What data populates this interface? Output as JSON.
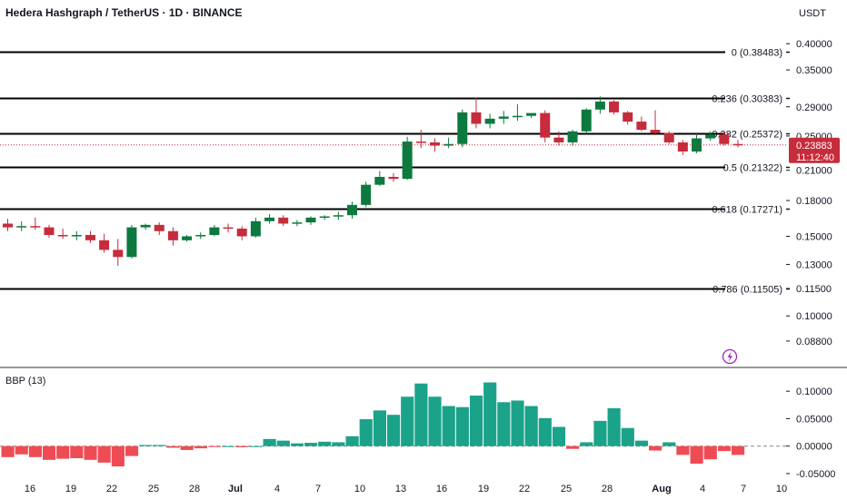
{
  "header": {
    "title": "Hedera Hashgraph / TetherUS · 1D · BINANCE",
    "currency": "USDT"
  },
  "price_badge": {
    "price": "0.23883",
    "countdown": "11:12:40",
    "color": "#c62c3c"
  },
  "indicator": {
    "title": "BBP (13)"
  },
  "icons": {
    "lightning": "lightning-icon"
  },
  "colors": {
    "up": "#0c7a3e",
    "down": "#c62c3c",
    "bbp_pos": "#1ba38a",
    "bbp_neg": "#ef4b55",
    "fib_line": "#000000"
  },
  "chart_data": [
    {
      "type": "candlestick",
      "title": "Hedera Hashgraph / TetherUS · 1D · BINANCE",
      "y_axis": {
        "scale": "log",
        "ticks": [
          "0.40000",
          "0.35000",
          "0.29000",
          "0.25000",
          "0.21000",
          "0.18000",
          "0.15000",
          "0.13000",
          "0.11500",
          "0.10000",
          "0.08800"
        ],
        "ylim": [
          0.078,
          0.435
        ]
      },
      "x_axis": {
        "ticks": [
          "16",
          "19",
          "22",
          "25",
          "28",
          "Jul",
          "4",
          "7",
          "10",
          "13",
          "16",
          "19",
          "22",
          "25",
          "28",
          "Aug",
          "4",
          "7",
          "10"
        ]
      },
      "fib_levels": [
        {
          "label": "0 (0.38483)",
          "value": 0.38483
        },
        {
          "label": "0.236 (0.30383)",
          "value": 0.30383
        },
        {
          "label": "0.382 (0.25372)",
          "value": 0.25372
        },
        {
          "label": "0.5 (0.21322)",
          "value": 0.21322
        },
        {
          "label": "0.618 (0.17271)",
          "value": 0.17271
        },
        {
          "label": "0.786 (0.11505)",
          "value": 0.11505
        }
      ],
      "current_price": 0.23883,
      "candles": [
        {
          "o": 0.16,
          "h": 0.164,
          "l": 0.154,
          "c": 0.157
        },
        {
          "o": 0.157,
          "h": 0.162,
          "l": 0.154,
          "c": 0.158
        },
        {
          "o": 0.158,
          "h": 0.165,
          "l": 0.155,
          "c": 0.157
        },
        {
          "o": 0.157,
          "h": 0.159,
          "l": 0.149,
          "c": 0.151
        },
        {
          "o": 0.151,
          "h": 0.156,
          "l": 0.148,
          "c": 0.15
        },
        {
          "o": 0.15,
          "h": 0.154,
          "l": 0.147,
          "c": 0.151
        },
        {
          "o": 0.151,
          "h": 0.154,
          "l": 0.145,
          "c": 0.147
        },
        {
          "o": 0.147,
          "h": 0.152,
          "l": 0.138,
          "c": 0.14
        },
        {
          "o": 0.14,
          "h": 0.148,
          "l": 0.129,
          "c": 0.135
        },
        {
          "o": 0.135,
          "h": 0.159,
          "l": 0.134,
          "c": 0.157
        },
        {
          "o": 0.157,
          "h": 0.16,
          "l": 0.155,
          "c": 0.159
        },
        {
          "o": 0.159,
          "h": 0.161,
          "l": 0.151,
          "c": 0.154
        },
        {
          "o": 0.154,
          "h": 0.157,
          "l": 0.143,
          "c": 0.147
        },
        {
          "o": 0.147,
          "h": 0.151,
          "l": 0.146,
          "c": 0.15
        },
        {
          "o": 0.15,
          "h": 0.153,
          "l": 0.148,
          "c": 0.151
        },
        {
          "o": 0.151,
          "h": 0.159,
          "l": 0.15,
          "c": 0.157
        },
        {
          "o": 0.157,
          "h": 0.16,
          "l": 0.153,
          "c": 0.156
        },
        {
          "o": 0.156,
          "h": 0.158,
          "l": 0.147,
          "c": 0.15
        },
        {
          "o": 0.15,
          "h": 0.165,
          "l": 0.149,
          "c": 0.162
        },
        {
          "o": 0.162,
          "h": 0.168,
          "l": 0.16,
          "c": 0.165
        },
        {
          "o": 0.165,
          "h": 0.167,
          "l": 0.158,
          "c": 0.16
        },
        {
          "o": 0.16,
          "h": 0.163,
          "l": 0.158,
          "c": 0.161
        },
        {
          "o": 0.161,
          "h": 0.166,
          "l": 0.159,
          "c": 0.165
        },
        {
          "o": 0.165,
          "h": 0.167,
          "l": 0.163,
          "c": 0.166
        },
        {
          "o": 0.166,
          "h": 0.17,
          "l": 0.163,
          "c": 0.167
        },
        {
          "o": 0.167,
          "h": 0.179,
          "l": 0.164,
          "c": 0.176
        },
        {
          "o": 0.176,
          "h": 0.198,
          "l": 0.174,
          "c": 0.195
        },
        {
          "o": 0.195,
          "h": 0.209,
          "l": 0.194,
          "c": 0.203
        },
        {
          "o": 0.203,
          "h": 0.207,
          "l": 0.198,
          "c": 0.201
        },
        {
          "o": 0.201,
          "h": 0.249,
          "l": 0.2,
          "c": 0.243
        },
        {
          "o": 0.243,
          "h": 0.258,
          "l": 0.235,
          "c": 0.242
        },
        {
          "o": 0.242,
          "h": 0.247,
          "l": 0.231,
          "c": 0.238
        },
        {
          "o": 0.238,
          "h": 0.248,
          "l": 0.235,
          "c": 0.24
        },
        {
          "o": 0.24,
          "h": 0.286,
          "l": 0.236,
          "c": 0.282
        },
        {
          "o": 0.282,
          "h": 0.304,
          "l": 0.26,
          "c": 0.266
        },
        {
          "o": 0.266,
          "h": 0.28,
          "l": 0.26,
          "c": 0.273
        },
        {
          "o": 0.273,
          "h": 0.284,
          "l": 0.266,
          "c": 0.276
        },
        {
          "o": 0.276,
          "h": 0.294,
          "l": 0.27,
          "c": 0.277
        },
        {
          "o": 0.277,
          "h": 0.28,
          "l": 0.274,
          "c": 0.281
        },
        {
          "o": 0.281,
          "h": 0.285,
          "l": 0.242,
          "c": 0.248
        },
        {
          "o": 0.248,
          "h": 0.256,
          "l": 0.238,
          "c": 0.242
        },
        {
          "o": 0.242,
          "h": 0.258,
          "l": 0.238,
          "c": 0.256
        },
        {
          "o": 0.256,
          "h": 0.288,
          "l": 0.253,
          "c": 0.286
        },
        {
          "o": 0.286,
          "h": 0.306,
          "l": 0.28,
          "c": 0.298
        },
        {
          "o": 0.298,
          "h": 0.3,
          "l": 0.279,
          "c": 0.282
        },
        {
          "o": 0.282,
          "h": 0.284,
          "l": 0.265,
          "c": 0.269
        },
        {
          "o": 0.269,
          "h": 0.276,
          "l": 0.256,
          "c": 0.258
        },
        {
          "o": 0.258,
          "h": 0.285,
          "l": 0.251,
          "c": 0.254
        },
        {
          "o": 0.254,
          "h": 0.256,
          "l": 0.24,
          "c": 0.242
        },
        {
          "o": 0.242,
          "h": 0.245,
          "l": 0.227,
          "c": 0.231
        },
        {
          "o": 0.231,
          "h": 0.251,
          "l": 0.229,
          "c": 0.247
        },
        {
          "o": 0.247,
          "h": 0.256,
          "l": 0.244,
          "c": 0.252
        },
        {
          "o": 0.252,
          "h": 0.256,
          "l": 0.238,
          "c": 0.24
        },
        {
          "o": 0.24,
          "h": 0.245,
          "l": 0.236,
          "c": 0.23883
        }
      ]
    },
    {
      "type": "bar",
      "title": "BBP (13)",
      "y_axis": {
        "ticks": [
          "0.10000",
          "0.05000",
          "0.00000",
          "-0.05000"
        ],
        "ylim": [
          -0.055,
          0.135
        ]
      },
      "zero_line": 0.0,
      "values": [
        -0.02,
        -0.015,
        -0.02,
        -0.025,
        -0.023,
        -0.022,
        -0.025,
        -0.03,
        -0.037,
        -0.018,
        0.002,
        0.002,
        -0.003,
        -0.007,
        -0.004,
        -0.001,
        0.0,
        -0.002,
        0.0,
        0.013,
        0.01,
        0.005,
        0.006,
        0.008,
        0.007,
        0.018,
        0.049,
        0.065,
        0.057,
        0.09,
        0.114,
        0.09,
        0.073,
        0.071,
        0.092,
        0.116,
        0.08,
        0.083,
        0.073,
        0.051,
        0.035,
        -0.005,
        0.007,
        0.046,
        0.069,
        0.033,
        0.01,
        -0.008,
        0.007,
        -0.016,
        -0.032,
        -0.024,
        -0.009,
        -0.016
      ]
    }
  ]
}
